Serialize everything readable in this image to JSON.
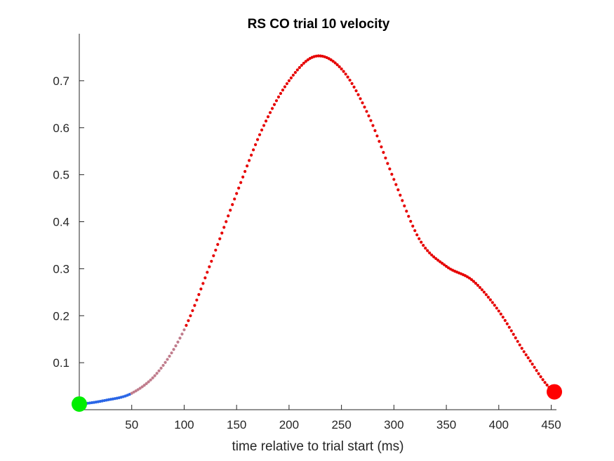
{
  "chart_data": {
    "type": "scatter",
    "title": "RS  CO trial 10 velocity",
    "xlabel": "time relative to trial start (ms)",
    "ylabel": "",
    "xlim": [
      0,
      455
    ],
    "ylim": [
      0.0,
      0.8
    ],
    "xticks": [
      50,
      100,
      150,
      200,
      250,
      300,
      350,
      400,
      450
    ],
    "yticks": [
      0.1,
      0.2,
      0.3,
      0.4,
      0.5,
      0.6,
      0.7
    ],
    "grid": false,
    "series": [
      {
        "name": "velocity",
        "sample_step_ms": 2,
        "x_range": [
          0,
          453
        ],
        "curve_keypoints": [
          {
            "x": 0,
            "y": 0.012
          },
          {
            "x": 25,
            "y": 0.02
          },
          {
            "x": 50,
            "y": 0.035
          },
          {
            "x": 75,
            "y": 0.08
          },
          {
            "x": 100,
            "y": 0.17
          },
          {
            "x": 125,
            "y": 0.31
          },
          {
            "x": 150,
            "y": 0.46
          },
          {
            "x": 175,
            "y": 0.6
          },
          {
            "x": 200,
            "y": 0.7
          },
          {
            "x": 225,
            "y": 0.752
          },
          {
            "x": 250,
            "y": 0.725
          },
          {
            "x": 275,
            "y": 0.63
          },
          {
            "x": 300,
            "y": 0.49
          },
          {
            "x": 325,
            "y": 0.36
          },
          {
            "x": 350,
            "y": 0.305
          },
          {
            "x": 375,
            "y": 0.275
          },
          {
            "x": 400,
            "y": 0.21
          },
          {
            "x": 425,
            "y": 0.12
          },
          {
            "x": 453,
            "y": 0.038
          }
        ],
        "color_segments": [
          {
            "from": 0,
            "to": 48,
            "color": "#2a66e6",
            "label": "early"
          },
          {
            "from": 48,
            "to": 100,
            "color": "#c07c8c",
            "label": "transition"
          },
          {
            "from": 100,
            "to": 453,
            "color": "#e60000",
            "label": "movement"
          }
        ]
      }
    ],
    "markers": [
      {
        "name": "start",
        "x": 0,
        "y": 0.012,
        "color": "#00ee00"
      },
      {
        "name": "end",
        "x": 453,
        "y": 0.038,
        "color": "#ff0000"
      }
    ]
  }
}
